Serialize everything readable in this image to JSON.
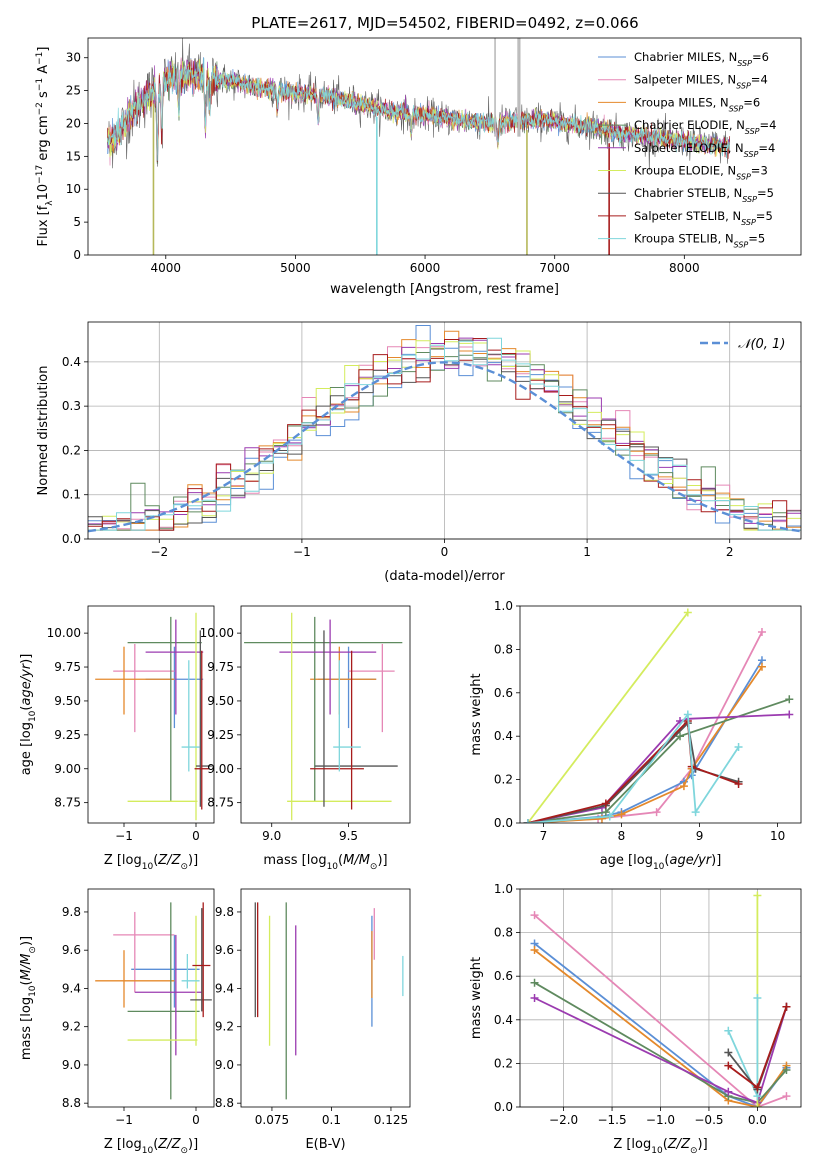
{
  "figure": {
    "title": "PLATE=2617, MJD=54502, FIBERID=0492, z=0.066",
    "legend": [
      {
        "name": "Chabrier MILES",
        "nssp": "6",
        "color": "#5b8fd6"
      },
      {
        "name": "Salpeter MILES",
        "nssp": "4",
        "color": "#e587b6"
      },
      {
        "name": "Kroupa MILES",
        "nssp": "6",
        "color": "#e4892c"
      },
      {
        "name": "Chabrier ELODIE",
        "nssp": "4",
        "color": "#5f8a5f"
      },
      {
        "name": "Salpeter ELODIE",
        "nssp": "4",
        "color": "#9b3bb0"
      },
      {
        "name": "Kroupa ELODIE",
        "nssp": "3",
        "color": "#d4ec5e"
      },
      {
        "name": "Chabrier STELIB",
        "nssp": "5",
        "color": "#555555"
      },
      {
        "name": "Salpeter STELIB",
        "nssp": "5",
        "color": "#a71c1c"
      },
      {
        "name": "Kroupa STELIB",
        "nssp": "5",
        "color": "#7fd6dc"
      }
    ],
    "nssp_label": "N",
    "nssp_sub": "SSP"
  },
  "chart_data": [
    {
      "id": "spectrum",
      "type": "line",
      "xlabel": "wavelength [Angstrom, rest frame]",
      "ylabel": "Flux [f_λ 10^-17 erg cm^-2 s^-1 A^-1]",
      "xlim": [
        3400,
        8900
      ],
      "ylim": [
        0,
        33
      ],
      "xticks": [
        4000,
        5000,
        6000,
        7000,
        8000
      ],
      "yticks": [
        0,
        5,
        10,
        15,
        20,
        25,
        30
      ],
      "grid": false,
      "legend_placement": "top-right",
      "continuum": {
        "x": [
          3550,
          3650,
          3750,
          3850,
          3950,
          4050,
          4150,
          4300,
          4500,
          4700,
          4900,
          5100,
          5300,
          5500,
          5700,
          5900,
          6100,
          6300,
          6500,
          6700,
          6900,
          7100,
          7300,
          7500,
          7700,
          7900,
          8100,
          8300
        ],
        "y": [
          17,
          19,
          22,
          24,
          26,
          27,
          27.5,
          27,
          26.5,
          25.5,
          25,
          24.5,
          24,
          23,
          22,
          21.5,
          21,
          20.5,
          20,
          20.5,
          20.5,
          20,
          19.5,
          18.5,
          18,
          17.5,
          17,
          16.5
        ]
      },
      "absorption_lines": [
        {
          "x": 3934,
          "depth": 10
        },
        {
          "x": 3969,
          "depth": 8
        },
        {
          "x": 4102,
          "depth": 5
        },
        {
          "x": 4305,
          "depth": 7
        },
        {
          "x": 4340,
          "depth": 5
        },
        {
          "x": 4861,
          "depth": 3
        },
        {
          "x": 5175,
          "depth": 4
        },
        {
          "x": 5893,
          "depth": 3
        },
        {
          "x": 6563,
          "depth": 3
        },
        {
          "x": 8500,
          "depth": 3
        },
        {
          "x": 8544,
          "depth": 3
        },
        {
          "x": 8664,
          "depth": 3
        }
      ],
      "masked_lines": [
        {
          "x": 3905,
          "y0": 0,
          "y1": 23,
          "color": "#b5b85a"
        },
        {
          "x": 5628,
          "y0": 0,
          "y1": 21,
          "color": "#7fd6dc"
        },
        {
          "x": 6786,
          "y0": 0,
          "y1": 19,
          "color": "#b5b85a"
        },
        {
          "x": 7420,
          "y0": 0,
          "y1": 17,
          "color": "#a71c1c"
        },
        {
          "x": 6540,
          "y0": 18,
          "y1": 33,
          "color": "#bbbbbb"
        },
        {
          "x": 6718,
          "y0": 18,
          "y1": 33,
          "color": "#bbbbbb"
        },
        {
          "x": 6730,
          "y0": 18,
          "y1": 33,
          "color": "#bbbbbb"
        }
      ]
    },
    {
      "id": "residuals",
      "type": "histogram",
      "xlabel": "(data-model)/error",
      "ylabel": "Normed distribution",
      "xlim": [
        -2.5,
        2.5
      ],
      "ylim": [
        0,
        0.49
      ],
      "xticks": [
        -2,
        -1,
        0,
        1,
        2
      ],
      "yticks": [
        0.0,
        0.1,
        0.2,
        0.3,
        0.4
      ],
      "grid": true,
      "legend_placement": "top-right",
      "normal_label": "𝒩(0, 1)",
      "normal_color": "#5b8fd6",
      "bin_width": 0.1,
      "bin_start": -2.5
    },
    {
      "id": "age-vs-Z",
      "type": "errorbar",
      "xlabel": "Z [log10(Z/Z⊙)]",
      "ylabel": "age  [log10(age/yr)]",
      "xlim": [
        -1.5,
        0.25
      ],
      "ylim": [
        8.6,
        10.2
      ],
      "xticks": [
        -1,
        0
      ],
      "yticks": [
        8.75,
        9.0,
        9.25,
        9.5,
        9.75,
        10.0
      ],
      "grid": false
    },
    {
      "id": "age-vs-mass",
      "type": "errorbar",
      "xlabel": "mass [log10(M/M⊙)]",
      "ylabel": "",
      "xlim": [
        8.8,
        9.9
      ],
      "ylim": [
        8.6,
        10.2
      ],
      "xticks": [
        9.0,
        9.5
      ],
      "yticks": [
        8.75,
        9.0,
        9.25,
        9.5,
        9.75,
        10.0
      ],
      "grid": false
    },
    {
      "id": "weight-vs-age",
      "type": "line",
      "xlabel": "age  [log10(age/yr)]",
      "ylabel": "mass weight",
      "xlim": [
        6.7,
        10.3
      ],
      "ylim": [
        0,
        1.0
      ],
      "xticks": [
        7,
        8,
        9,
        10
      ],
      "yticks": [
        0.0,
        0.2,
        0.4,
        0.6,
        0.8,
        1.0
      ],
      "grid": false,
      "series": [
        {
          "color": "#d4ec5e",
          "x": [
            6.8,
            8.85
          ],
          "y": [
            0.0,
            0.97
          ]
        },
        {
          "color": "#e587b6",
          "x": [
            6.8,
            7.7,
            8.45,
            8.9,
            9.8
          ],
          "y": [
            0.0,
            0.02,
            0.05,
            0.25,
            0.88
          ]
        },
        {
          "color": "#5b8fd6",
          "x": [
            6.8,
            7.75,
            8.0,
            8.8,
            8.9,
            9.8
          ],
          "y": [
            0.0,
            0.03,
            0.05,
            0.19,
            0.22,
            0.75
          ]
        },
        {
          "color": "#e4892c",
          "x": [
            6.8,
            7.75,
            8.0,
            8.8,
            8.9,
            9.8
          ],
          "y": [
            0.0,
            0.02,
            0.04,
            0.17,
            0.25,
            0.72
          ]
        },
        {
          "color": "#5f8a5f",
          "x": [
            6.8,
            7.8,
            8.75,
            10.15
          ],
          "y": [
            0.0,
            0.05,
            0.4,
            0.57
          ]
        },
        {
          "color": "#9b3bb0",
          "x": [
            6.8,
            7.75,
            8.75,
            8.85,
            10.15
          ],
          "y": [
            0.0,
            0.07,
            0.47,
            0.48,
            0.5
          ]
        },
        {
          "color": "#555555",
          "x": [
            6.8,
            7.8,
            8.85,
            8.95,
            9.5
          ],
          "y": [
            0.0,
            0.08,
            0.46,
            0.25,
            0.19
          ]
        },
        {
          "color": "#a71c1c",
          "x": [
            6.8,
            7.8,
            8.85,
            8.9,
            9.5
          ],
          "y": [
            0.0,
            0.09,
            0.47,
            0.26,
            0.18
          ]
        },
        {
          "color": "#7fd6dc",
          "x": [
            6.8,
            7.85,
            8.85,
            8.95,
            9.5
          ],
          "y": [
            0.0,
            0.03,
            0.5,
            0.05,
            0.35
          ]
        }
      ]
    },
    {
      "id": "mass-vs-Z",
      "type": "errorbar",
      "xlabel": "Z [log10(Z/Z⊙)]",
      "ylabel": "mass [log10(M/M⊙)]",
      "xlim": [
        -1.5,
        0.25
      ],
      "ylim": [
        8.78,
        9.92
      ],
      "xticks": [
        -1,
        0
      ],
      "yticks": [
        8.8,
        9.0,
        9.2,
        9.4,
        9.6,
        9.8
      ],
      "grid": false
    },
    {
      "id": "mass-vs-EBV",
      "type": "errorbar",
      "xlabel": "E(B-V)",
      "ylabel": "",
      "xlim": [
        0.062,
        0.133
      ],
      "ylim": [
        8.78,
        9.92
      ],
      "xticks": [
        0.075,
        0.1,
        0.125
      ],
      "yticks": [
        8.8,
        9.0,
        9.2,
        9.4,
        9.6,
        9.8
      ],
      "grid": false
    },
    {
      "id": "weight-vs-Z",
      "type": "line",
      "xlabel": "Z [log10(Z/Z⊙)]",
      "ylabel": "mass weight",
      "xlim": [
        -2.45,
        0.45
      ],
      "ylim": [
        0,
        1.0
      ],
      "xticks": [
        -2.0,
        -1.5,
        -1.0,
        -0.5,
        0.0
      ],
      "yticks": [
        0.0,
        0.2,
        0.4,
        0.6,
        0.8,
        1.0
      ],
      "grid": true,
      "series": [
        {
          "color": "#e587b6",
          "x": [
            -2.3,
            0.0,
            0.3
          ],
          "y": [
            0.88,
            0.0,
            0.05
          ]
        },
        {
          "color": "#5b8fd6",
          "x": [
            -2.3,
            -0.3,
            0.0,
            0.3
          ],
          "y": [
            0.75,
            0.05,
            0.0,
            0.18
          ]
        },
        {
          "color": "#e4892c",
          "x": [
            -2.3,
            -0.3,
            0.0,
            0.3
          ],
          "y": [
            0.72,
            0.03,
            0.0,
            0.19
          ]
        },
        {
          "color": "#5f8a5f",
          "x": [
            -2.3,
            -0.3,
            0.0,
            0.3
          ],
          "y": [
            0.57,
            0.05,
            0.02,
            0.17
          ]
        },
        {
          "color": "#9b3bb0",
          "x": [
            -2.3,
            -0.3,
            0.0,
            0.3
          ],
          "y": [
            0.5,
            0.07,
            0.02,
            0.46
          ]
        },
        {
          "color": "#d4ec5e",
          "x": [
            0.0,
            0.0
          ],
          "y": [
            0.0,
            0.97
          ]
        },
        {
          "color": "#7fd6dc",
          "x": [
            -0.3,
            0.0,
            0.0
          ],
          "y": [
            0.35,
            0.05,
            0.5
          ]
        },
        {
          "color": "#555555",
          "x": [
            -0.3,
            0.0,
            0.3
          ],
          "y": [
            0.25,
            0.08,
            0.46
          ]
        },
        {
          "color": "#a71c1c",
          "x": [
            -0.3,
            0.0,
            0.3
          ],
          "y": [
            0.19,
            0.09,
            0.46
          ]
        }
      ]
    }
  ],
  "errorbars": {
    "age_Z": [
      {
        "c": "#5b8fd6",
        "x": -0.3,
        "x0": -0.7,
        "x1": 0.1,
        "y": 9.66,
        "y0": 9.3,
        "y1": 9.9
      },
      {
        "c": "#e587b6",
        "x": -0.85,
        "x0": -1.15,
        "x1": -0.3,
        "y": 9.72,
        "y0": 9.27,
        "y1": 9.92
      },
      {
        "c": "#e4892c",
        "x": -1.0,
        "x0": -1.4,
        "x1": -0.3,
        "y": 9.66,
        "y0": 9.4,
        "y1": 9.9
      },
      {
        "c": "#5f8a5f",
        "x": -0.35,
        "x0": -0.95,
        "x1": 0.08,
        "y": 9.93,
        "y0": 8.76,
        "y1": 10.12
      },
      {
        "c": "#9b3bb0",
        "x": -0.28,
        "x0": -0.7,
        "x1": 0.1,
        "y": 9.86,
        "y0": 9.4,
        "y1": 10.1
      },
      {
        "c": "#d4ec5e",
        "x": 0.0,
        "x0": -0.95,
        "x1": 0.02,
        "y": 8.76,
        "y0": 8.62,
        "y1": 10.15
      },
      {
        "c": "#555555",
        "x": 0.06,
        "x0": 0.0,
        "x1": 0.22,
        "y": 9.02,
        "y0": 8.72,
        "y1": 10.02
      },
      {
        "c": "#a71c1c",
        "x": 0.08,
        "x0": -0.02,
        "x1": 0.18,
        "y": 9.0,
        "y0": 8.7,
        "y1": 9.87
      },
      {
        "c": "#7fd6dc",
        "x": -0.1,
        "x0": -0.2,
        "x1": 0.05,
        "y": 9.16,
        "y0": 8.98,
        "y1": 9.8
      }
    ],
    "age_mass": [
      {
        "c": "#5b8fd6",
        "x": 9.5,
        "x0": 9.3,
        "x1": 9.68,
        "y": 9.66,
        "y0": 9.3,
        "y1": 9.9
      },
      {
        "c": "#e587b6",
        "x": 9.72,
        "x0": 9.5,
        "x1": 9.8,
        "y": 9.72,
        "y0": 9.27,
        "y1": 9.92
      },
      {
        "c": "#e4892c",
        "x": 9.44,
        "x0": 9.25,
        "x1": 9.68,
        "y": 9.66,
        "y0": 9.4,
        "y1": 9.9
      },
      {
        "c": "#5f8a5f",
        "x": 9.28,
        "x0": 8.82,
        "x1": 9.85,
        "y": 9.93,
        "y0": 8.76,
        "y1": 10.12
      },
      {
        "c": "#9b3bb0",
        "x": 9.38,
        "x0": 9.05,
        "x1": 9.68,
        "y": 9.86,
        "y0": 9.4,
        "y1": 10.1
      },
      {
        "c": "#d4ec5e",
        "x": 9.13,
        "x0": 9.1,
        "x1": 9.78,
        "y": 8.76,
        "y0": 8.62,
        "y1": 10.15
      },
      {
        "c": "#555555",
        "x": 9.34,
        "x0": 9.28,
        "x1": 9.82,
        "y": 9.02,
        "y0": 8.72,
        "y1": 10.02
      },
      {
        "c": "#a71c1c",
        "x": 9.52,
        "x0": 9.25,
        "x1": 9.6,
        "y": 9.0,
        "y0": 8.7,
        "y1": 9.87
      },
      {
        "c": "#7fd6dc",
        "x": 9.44,
        "x0": 9.4,
        "x1": 9.58,
        "y": 9.16,
        "y0": 8.98,
        "y1": 9.8
      }
    ],
    "mass_Z": [
      {
        "c": "#5b8fd6",
        "x": -0.3,
        "x0": -0.9,
        "x1": 0.05,
        "y": 9.5,
        "y0": 9.3,
        "y1": 9.68
      },
      {
        "c": "#e587b6",
        "x": -0.85,
        "x0": -1.15,
        "x1": -0.3,
        "y": 9.68,
        "y0": 9.38,
        "y1": 9.8
      },
      {
        "c": "#e4892c",
        "x": -1.0,
        "x0": -1.4,
        "x1": -0.3,
        "y": 9.44,
        "y0": 9.3,
        "y1": 9.6
      },
      {
        "c": "#5f8a5f",
        "x": -0.35,
        "x0": -0.95,
        "x1": 0.05,
        "y": 9.28,
        "y0": 8.82,
        "y1": 9.85
      },
      {
        "c": "#9b3bb0",
        "x": -0.28,
        "x0": -0.85,
        "x1": 0.08,
        "y": 9.38,
        "y0": 9.05,
        "y1": 9.68
      },
      {
        "c": "#d4ec5e",
        "x": 0.0,
        "x0": -0.95,
        "x1": 0.02,
        "y": 9.13,
        "y0": 9.1,
        "y1": 9.78
      },
      {
        "c": "#555555",
        "x": 0.08,
        "x0": -0.08,
        "x1": 0.22,
        "y": 9.34,
        "y0": 9.28,
        "y1": 9.82
      },
      {
        "c": "#a71c1c",
        "x": 0.1,
        "x0": -0.05,
        "x1": 0.2,
        "y": 9.52,
        "y0": 9.25,
        "y1": 9.85
      },
      {
        "c": "#7fd6dc",
        "x": -0.12,
        "x0": -0.2,
        "x1": 0.05,
        "y": 9.44,
        "y0": 9.4,
        "y1": 9.58
      }
    ],
    "mass_EBV": [
      {
        "c": "#5b8fd6",
        "x": 0.117,
        "y": 9.45,
        "y0": 9.2,
        "y1": 9.78
      },
      {
        "c": "#e587b6",
        "x": 0.118,
        "y": 9.75,
        "y0": 9.55,
        "y1": 9.82
      },
      {
        "c": "#e4892c",
        "x": 0.117,
        "y": 9.5,
        "y0": 9.35,
        "y1": 9.7
      },
      {
        "c": "#5f8a5f",
        "x": 0.081,
        "y": 9.35,
        "y0": 8.82,
        "y1": 9.85
      },
      {
        "c": "#9b3bb0",
        "x": 0.085,
        "y": 9.4,
        "y0": 9.05,
        "y1": 9.73
      },
      {
        "c": "#d4ec5e",
        "x": 0.074,
        "y": 9.45,
        "y0": 9.1,
        "y1": 9.78
      },
      {
        "c": "#555555",
        "x": 0.068,
        "y": 9.5,
        "y0": 9.25,
        "y1": 9.85
      },
      {
        "c": "#a71c1c",
        "x": 0.069,
        "y": 9.5,
        "y0": 9.25,
        "y1": 9.85
      },
      {
        "c": "#7fd6dc",
        "x": 0.13,
        "y": 9.45,
        "y0": 9.36,
        "y1": 9.57
      }
    ]
  }
}
